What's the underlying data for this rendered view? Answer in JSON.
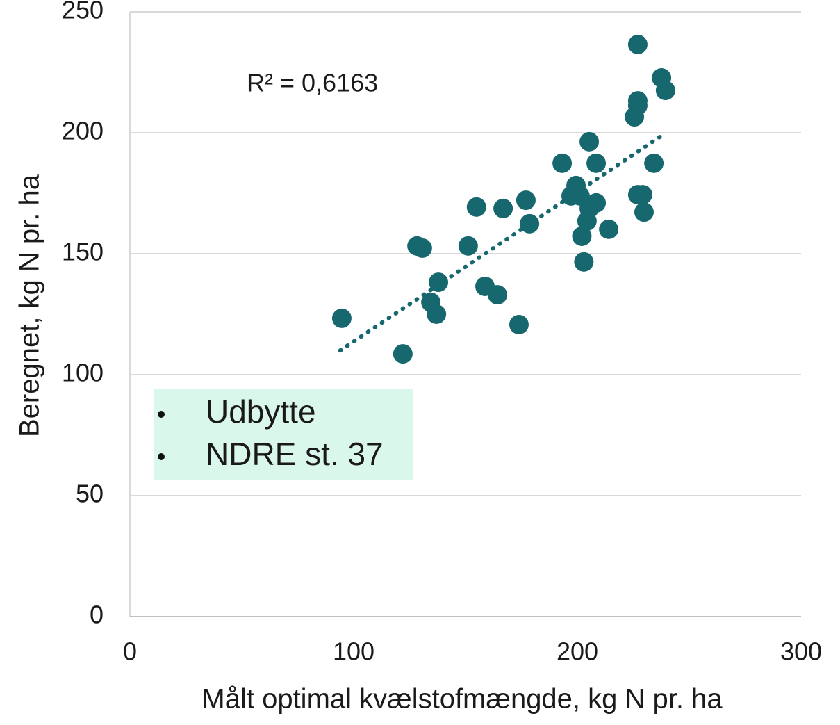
{
  "chart_data": {
    "type": "scatter",
    "xlabel": "Målt optimal  kvælstofmængde,  kg N pr. ha",
    "ylabel": "Beregnet,  kg N pr. ha",
    "annotation": "R² = 0,6163",
    "legend_items": [
      "Udbytte",
      "NDRE st. 37"
    ],
    "xlim": [
      0,
      300
    ],
    "xticks": [
      0,
      100,
      200,
      300
    ],
    "ylim": [
      0,
      250
    ],
    "yticks": [
      0,
      50,
      100,
      150,
      200,
      250
    ],
    "grid": true,
    "color": "#17676f",
    "x": [
      227,
      237.6,
      239.4,
      227,
      227,
      225.5,
      205.3,
      193.2,
      208.4,
      234.2,
      199.4,
      197.2,
      201.2,
      227,
      229.2,
      208.4,
      205.3,
      229.8,
      204.3,
      214,
      202,
      202.9,
      177,
      178.6,
      154.9,
      166.8,
      151.2,
      128.3,
      130.7,
      137.9,
      158.7,
      164.3,
      134.5,
      137,
      173.9,
      94.7,
      122
    ],
    "y": [
      236.5,
      222.7,
      217.5,
      213.2,
      211.2,
      206.6,
      196.3,
      187.4,
      187.4,
      187.4,
      178.2,
      173.9,
      173.9,
      174.4,
      174.4,
      171,
      168.7,
      167.2,
      163.5,
      160.1,
      157.2,
      146.6,
      172.1,
      162.4,
      169.3,
      168.7,
      153.2,
      153.2,
      152.3,
      138.2,
      136.5,
      133,
      129.9,
      125,
      120.7,
      123.3,
      108.6
    ],
    "trendline": {
      "x": [
        94,
        238
      ],
      "y": [
        110,
        199
      ]
    }
  }
}
